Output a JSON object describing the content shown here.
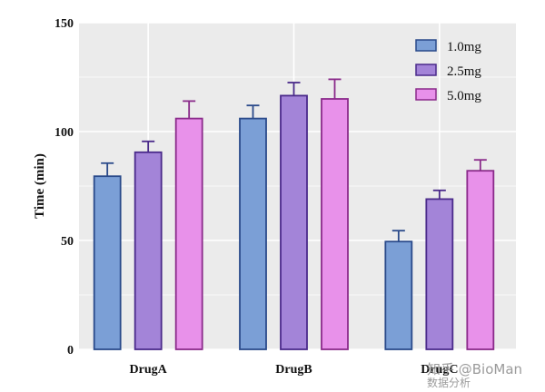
{
  "chart_data": {
    "type": "bar",
    "title": "",
    "xlabel": "",
    "ylabel": "Time (min)",
    "ylim": [
      0,
      150
    ],
    "yticks": [
      "0",
      "50",
      "100",
      "150"
    ],
    "grid": true,
    "legend_position": "top-right",
    "categories": [
      "DrugA",
      "DrugB",
      "DrugC"
    ],
    "series": [
      {
        "name": "1.0mg",
        "color": "#7b9fd6",
        "edge": "#2a4a8a",
        "values": [
          79.5,
          106,
          49.5
        ],
        "errors": [
          6,
          6,
          5
        ]
      },
      {
        "name": "2.5mg",
        "color": "#a384d8",
        "edge": "#4a2a8a",
        "values": [
          90.5,
          116.5,
          69
        ],
        "errors": [
          5,
          6,
          4
        ]
      },
      {
        "name": "5.0mg",
        "color": "#e891ea",
        "edge": "#8a2a8a",
        "values": [
          106,
          115,
          82
        ],
        "errors": [
          8,
          9,
          5
        ]
      }
    ]
  },
  "watermark": {
    "line1": "知乎 @BioMan",
    "line2": "数据分析"
  }
}
